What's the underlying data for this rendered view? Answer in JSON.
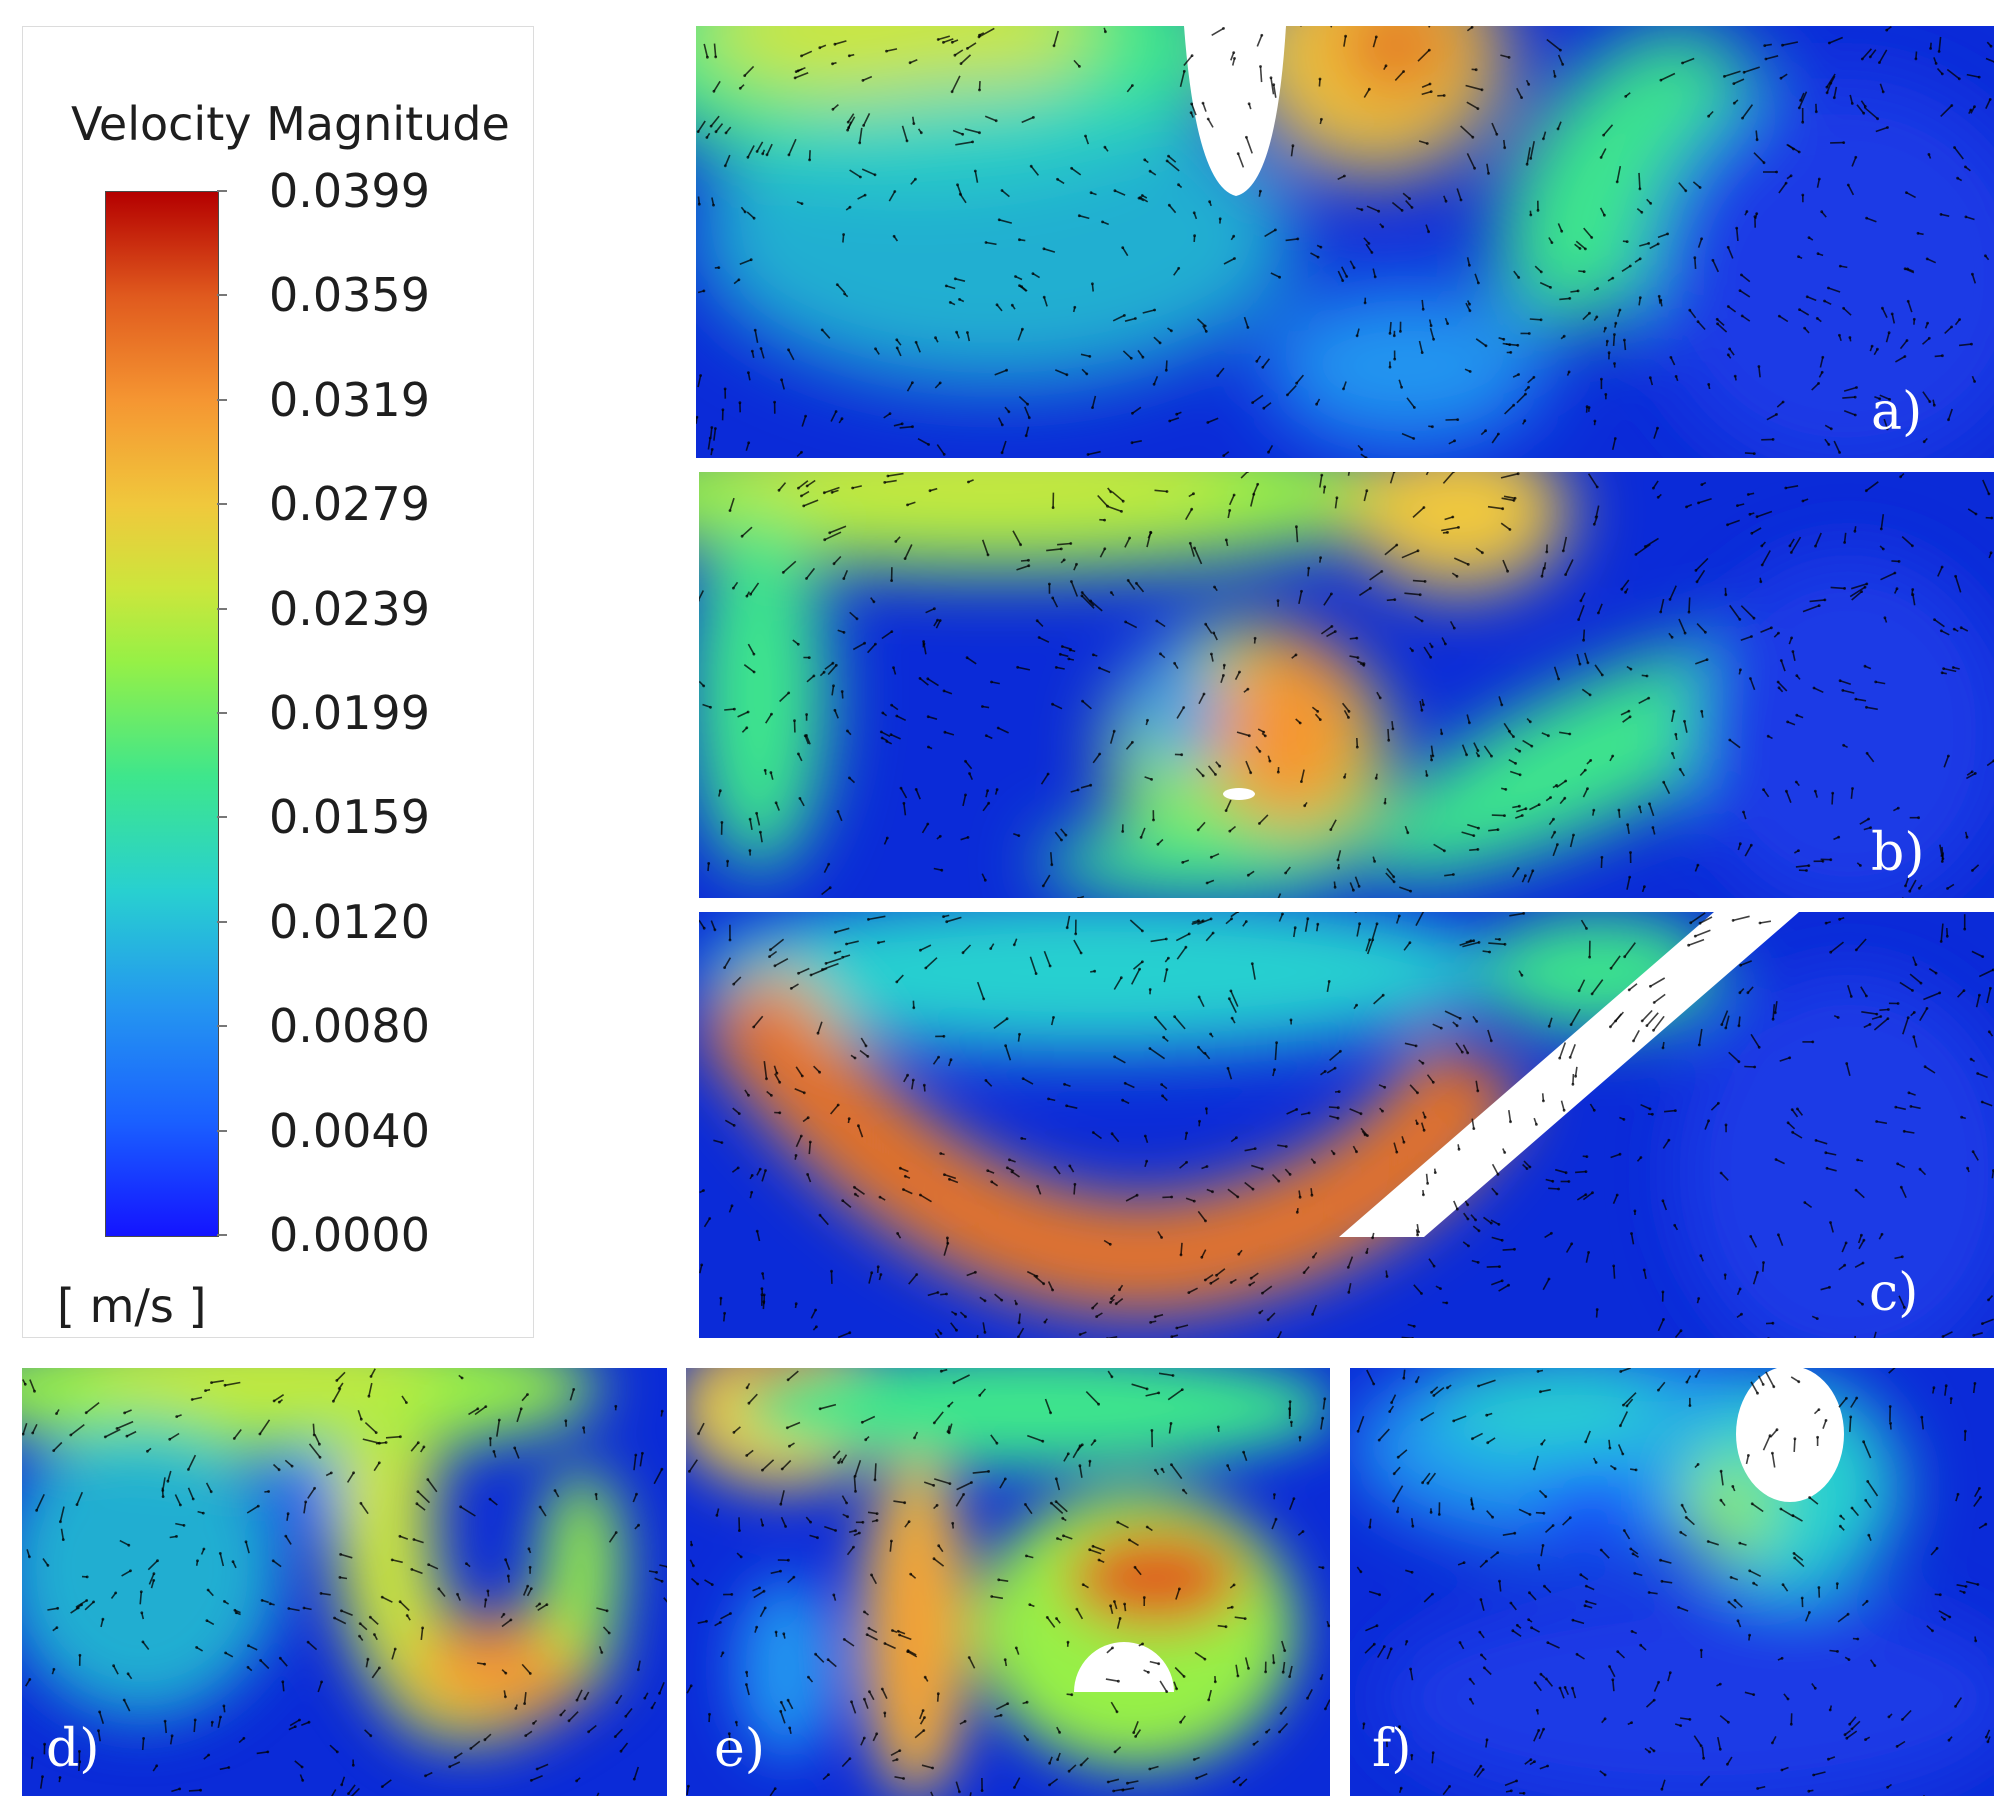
{
  "legend": {
    "title": "Velocity Magnitude",
    "unit": "[ m/s ]",
    "ticks": [
      "0.0399",
      "0.0359",
      "0.0319",
      "0.0279",
      "0.0239",
      "0.0199",
      "0.0159",
      "0.0120",
      "0.0080",
      "0.0040",
      "0.0000"
    ],
    "colormap": [
      "#1414ff",
      "#1a60ff",
      "#2496f0",
      "#28d0d0",
      "#3ee68c",
      "#96f046",
      "#cce63c",
      "#f0c83c",
      "#f59632",
      "#e05a1e",
      "#b40000"
    ]
  },
  "panels": [
    {
      "label": "a)"
    },
    {
      "label": "b)"
    },
    {
      "label": "c)"
    },
    {
      "label": "d)"
    },
    {
      "label": "e)"
    },
    {
      "label": "f)"
    }
  ]
}
